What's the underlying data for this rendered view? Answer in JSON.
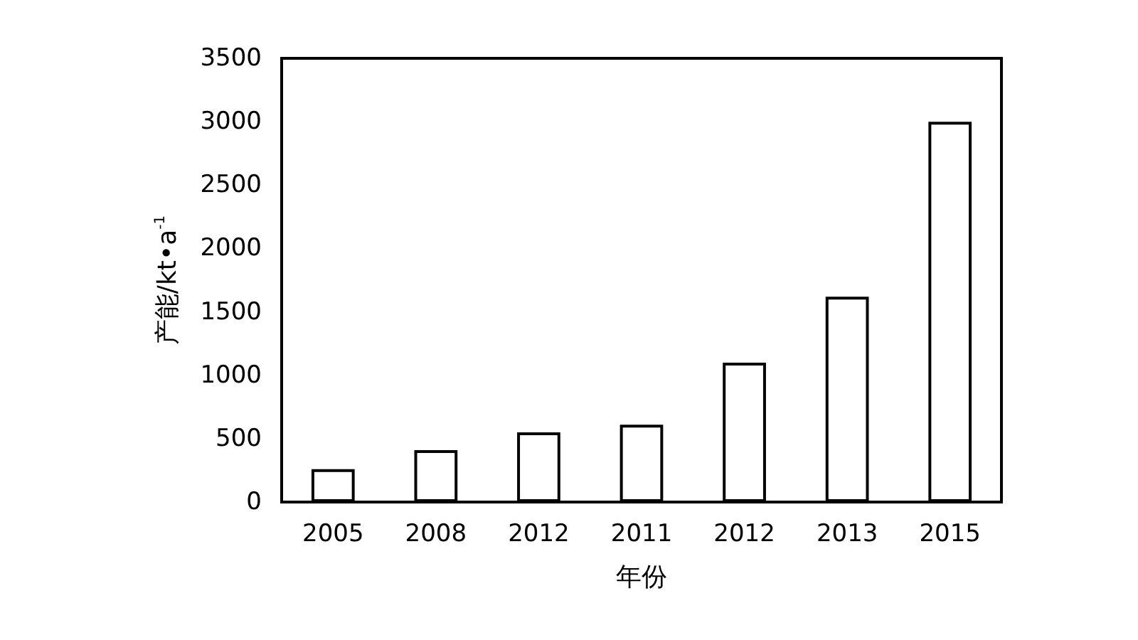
{
  "chart_data": {
    "type": "bar",
    "xlabel": "年份",
    "ylabel": "产能/kt•a$^{-1}$",
    "categories": [
      "2005",
      "2008",
      "2012",
      "2011",
      "2012",
      "2013",
      "2015"
    ],
    "values": [
      260,
      410,
      550,
      610,
      1100,
      1620,
      3000
    ],
    "color": "#ffffff",
    "ylim": [
      0,
      3500
    ],
    "yticks": [
      0,
      500,
      1000,
      1500,
      2000,
      2500,
      3000,
      3500
    ],
    "grid": false
  }
}
